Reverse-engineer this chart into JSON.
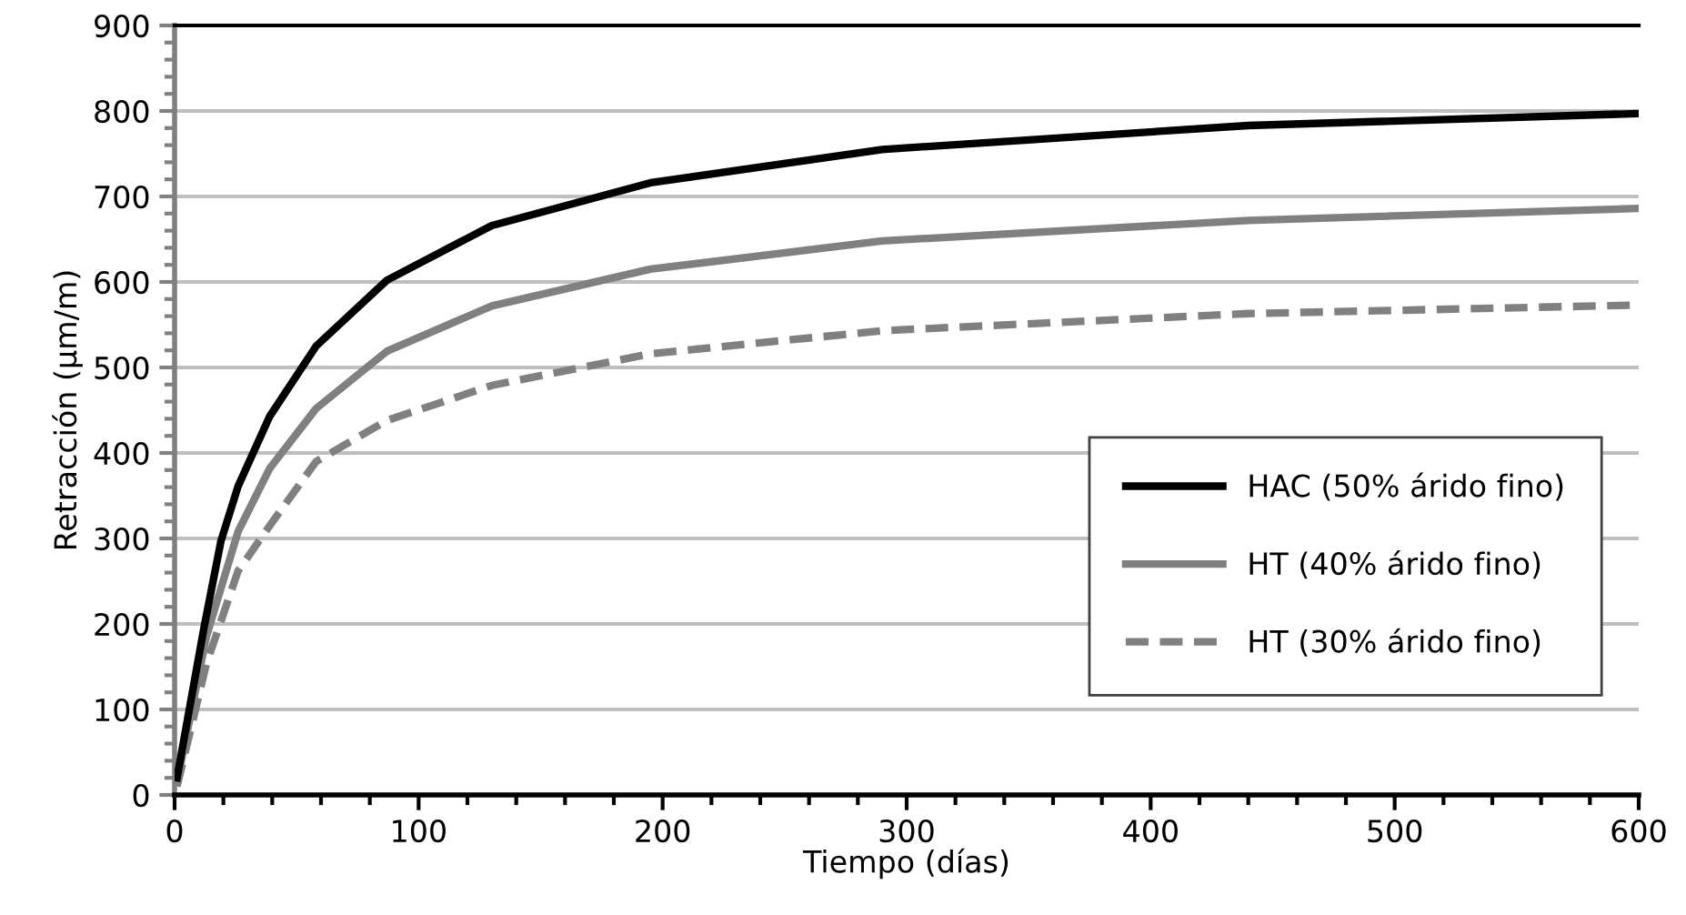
{
  "chart_data": {
    "type": "line",
    "xlabel": "Tiempo (días)",
    "ylabel": "Retracción (µm/m)",
    "xlim": [
      0,
      600
    ],
    "xticks": [
      0,
      100,
      200,
      300,
      400,
      500,
      600
    ],
    "ylim": [
      0,
      900
    ],
    "yticks": [
      0,
      100,
      200,
      300,
      400,
      500,
      600,
      700,
      800,
      900
    ],
    "grid": "y",
    "legend": "bottom right",
    "marker": "none",
    "series": [
      {
        "name": "HAC (50% árido fino)",
        "color": "#000000",
        "line_style": "solid",
        "x": [
          1,
          12,
          19,
          26,
          39,
          58,
          87,
          130,
          195,
          290,
          440,
          600
        ],
        "values": [
          20,
          195,
          297,
          361,
          443,
          525,
          602,
          666,
          716,
          755,
          783,
          797
        ]
      },
      {
        "name": "HT (40% árido fino)",
        "color": "#808080",
        "line_style": "solid",
        "x": [
          1,
          13,
          26,
          39,
          58,
          87,
          130,
          195,
          290,
          440,
          600
        ],
        "values": [
          15,
          185,
          308,
          382,
          452,
          519,
          572,
          615,
          648,
          672,
          686
        ]
      },
      {
        "name": "HT (30% árido fino)",
        "color": "#808080",
        "line_style": "dashed",
        "x": [
          1,
          13,
          26,
          39,
          58,
          87,
          130,
          195,
          290,
          440,
          600
        ],
        "values": [
          10,
          153,
          262,
          315,
          390,
          438,
          479,
          516,
          543,
          563,
          573
        ]
      }
    ]
  }
}
